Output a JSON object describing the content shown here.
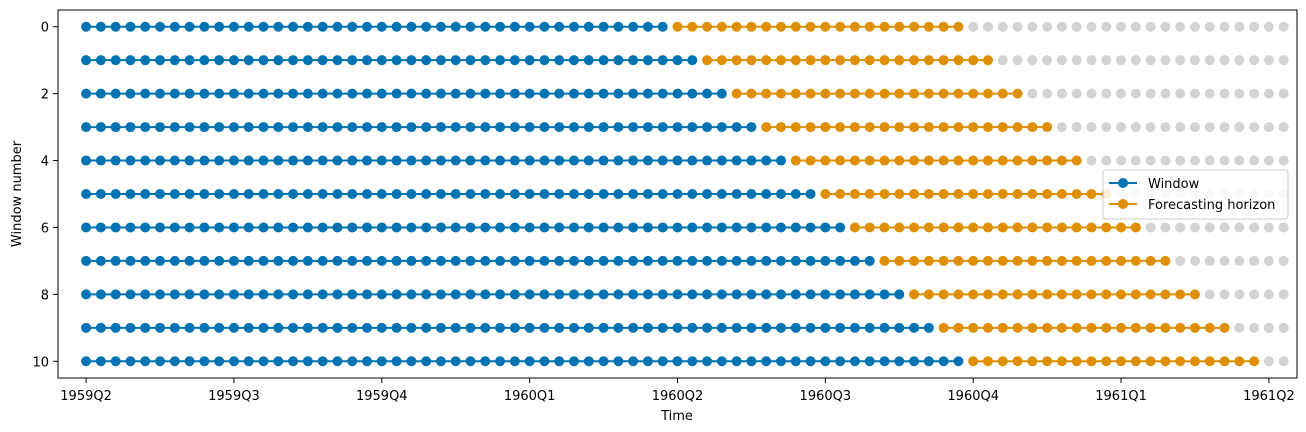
{
  "chart_data": {
    "type": "scatter",
    "title": "",
    "xlabel": "Time",
    "ylabel": "Window number",
    "x_tick_labels": [
      "1959Q2",
      "1959Q3",
      "1959Q4",
      "1960Q1",
      "1960Q2",
      "1960Q3",
      "1960Q4",
      "1961Q1",
      "1961Q2"
    ],
    "y_ticks": [
      0,
      2,
      4,
      6,
      8,
      10
    ],
    "ylim": [
      10.5,
      -0.5
    ],
    "xlim": [
      -1.9,
      81.9
    ],
    "unit": "month",
    "total_points": 82,
    "window_length": 40,
    "horizon_length": 20,
    "windows": [
      {
        "window": 0,
        "window_range": [
          0,
          39
        ],
        "horizon_range": [
          40,
          59
        ]
      },
      {
        "window": 1,
        "window_range": [
          0,
          41
        ],
        "horizon_range": [
          42,
          61
        ]
      },
      {
        "window": 2,
        "window_range": [
          0,
          43
        ],
        "horizon_range": [
          44,
          63
        ]
      },
      {
        "window": 3,
        "window_range": [
          0,
          45
        ],
        "horizon_range": [
          46,
          65
        ]
      },
      {
        "window": 4,
        "window_range": [
          0,
          47
        ],
        "horizon_range": [
          48,
          67
        ]
      },
      {
        "window": 5,
        "window_range": [
          0,
          49
        ],
        "horizon_range": [
          50,
          69
        ]
      },
      {
        "window": 6,
        "window_range": [
          0,
          51
        ],
        "horizon_range": [
          52,
          71
        ]
      },
      {
        "window": 7,
        "window_range": [
          0,
          53
        ],
        "horizon_range": [
          54,
          73
        ]
      },
      {
        "window": 8,
        "window_range": [
          0,
          55
        ],
        "horizon_range": [
          56,
          75
        ]
      },
      {
        "window": 9,
        "window_range": [
          0,
          57
        ],
        "horizon_range": [
          58,
          77
        ]
      },
      {
        "window": 10,
        "window_range": [
          0,
          59
        ],
        "horizon_range": [
          60,
          79
        ]
      }
    ],
    "legend": [
      {
        "label": "Window",
        "color": "#0173b2"
      },
      {
        "label": "Forecasting horizon",
        "color": "#de8f05"
      }
    ],
    "legend_position": "center-right",
    "colors": {
      "window": "#0173b2",
      "horizon": "#de8f05",
      "background": "#d3d3d3"
    }
  }
}
